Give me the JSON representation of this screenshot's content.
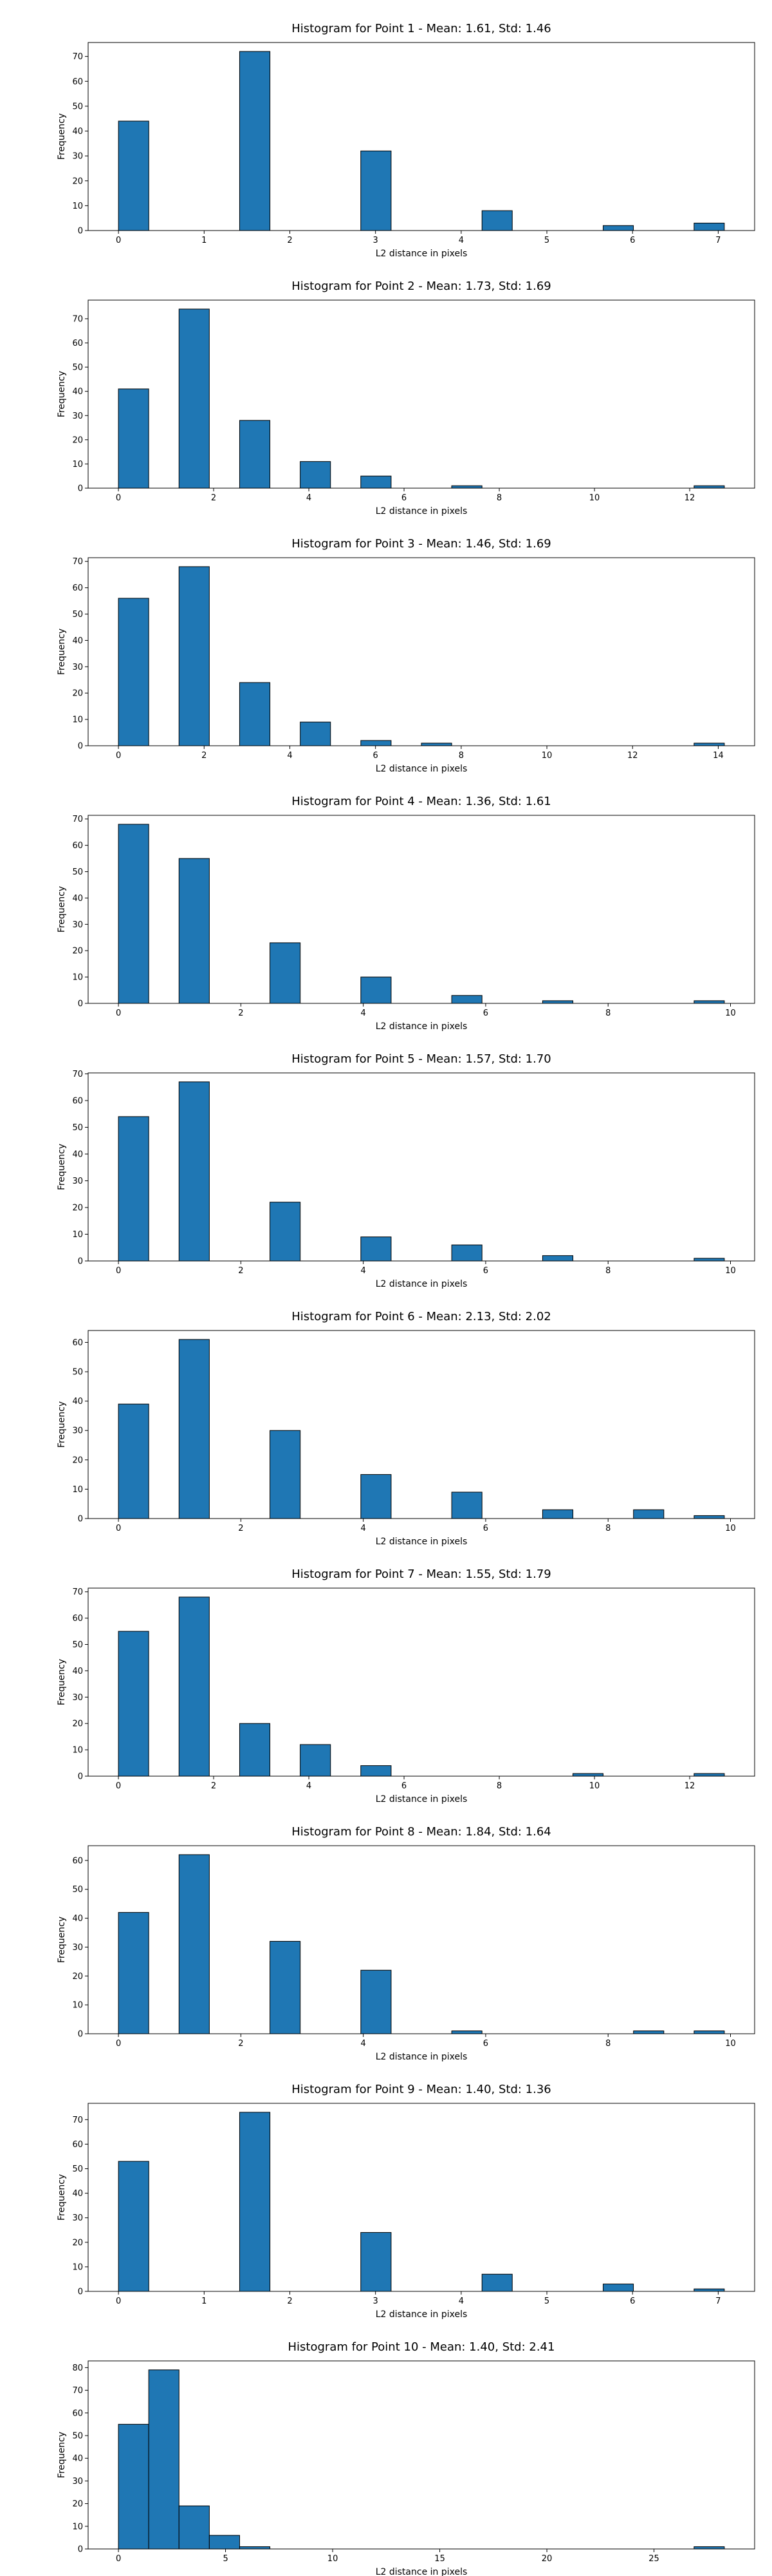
{
  "chart_data": [
    {
      "type": "histogram",
      "title": "Histogram for Point 1 - Mean: 1.61, Std: 1.46",
      "x_label": "L2 distance in pixels",
      "y_label": "Frequency",
      "color": "#1f77b4",
      "bins": [
        0,
        0.354,
        0.707,
        1.061,
        1.414,
        1.768,
        2.121,
        2.475,
        2.828,
        3.182,
        3.536,
        3.889,
        4.243,
        4.596,
        4.95,
        5.303,
        5.657,
        6.01,
        6.364,
        6.718,
        7.071
      ],
      "values": [
        44,
        0,
        0,
        0,
        72,
        0,
        0,
        0,
        32,
        0,
        0,
        0,
        8,
        0,
        0,
        0,
        2,
        0,
        0,
        3
      ],
      "xlim": [
        -0.354,
        7.425
      ],
      "ylim": [
        0,
        75.6
      ],
      "xticks": [
        0,
        1,
        2,
        3,
        4,
        5,
        6,
        7
      ],
      "yticks": [
        0,
        10,
        20,
        30,
        40,
        50,
        60,
        70
      ]
    },
    {
      "type": "histogram",
      "title": "Histogram for Point 2 - Mean: 1.73, Std: 1.69",
      "x_label": "L2 distance in pixels",
      "y_label": "Frequency",
      "color": "#1f77b4",
      "bins": [
        0,
        0.636,
        1.273,
        1.909,
        2.546,
        3.182,
        3.818,
        4.455,
        5.091,
        5.728,
        6.364,
        7.0,
        7.637,
        8.273,
        8.91,
        9.546,
        10.182,
        10.819,
        11.455,
        12.092,
        12.728
      ],
      "values": [
        41,
        0,
        74,
        0,
        28,
        0,
        11,
        0,
        5,
        0,
        0,
        1,
        0,
        0,
        0,
        0,
        0,
        0,
        0,
        1
      ],
      "xlim": [
        -0.636,
        13.364
      ],
      "ylim": [
        0,
        77.7
      ],
      "xticks": [
        0,
        2,
        4,
        6,
        8,
        10,
        12
      ],
      "yticks": [
        0,
        10,
        20,
        30,
        40,
        50,
        60,
        70
      ]
    },
    {
      "type": "histogram",
      "title": "Histogram for Point 3 - Mean: 1.46, Std: 1.69",
      "x_label": "L2 distance in pixels",
      "y_label": "Frequency",
      "color": "#1f77b4",
      "bins": [
        0,
        0.707,
        1.414,
        2.121,
        2.828,
        3.536,
        4.243,
        4.95,
        5.657,
        6.364,
        7.071,
        7.778,
        8.485,
        9.192,
        9.899,
        10.607,
        11.314,
        12.021,
        12.728,
        13.435,
        14.142
      ],
      "values": [
        56,
        0,
        68,
        0,
        24,
        0,
        9,
        0,
        2,
        0,
        1,
        0,
        0,
        0,
        0,
        0,
        0,
        0,
        0,
        1
      ],
      "xlim": [
        -0.707,
        14.849
      ],
      "ylim": [
        0,
        71.4
      ],
      "xticks": [
        0,
        2,
        4,
        6,
        8,
        10,
        12,
        14
      ],
      "yticks": [
        0,
        10,
        20,
        30,
        40,
        50,
        60,
        70
      ]
    },
    {
      "type": "histogram",
      "title": "Histogram for Point 4 - Mean: 1.36, Std: 1.61",
      "x_label": "L2 distance in pixels",
      "y_label": "Frequency",
      "color": "#1f77b4",
      "bins": [
        0,
        0.495,
        0.99,
        1.485,
        1.98,
        2.475,
        2.97,
        3.465,
        3.96,
        4.455,
        4.95,
        5.445,
        5.94,
        6.435,
        6.93,
        7.425,
        7.92,
        8.415,
        8.91,
        9.405,
        9.899
      ],
      "values": [
        68,
        0,
        55,
        0,
        0,
        23,
        0,
        0,
        10,
        0,
        0,
        3,
        0,
        0,
        1,
        0,
        0,
        0,
        0,
        1
      ],
      "xlim": [
        -0.495,
        10.394
      ],
      "ylim": [
        0,
        71.4
      ],
      "xticks": [
        0,
        2,
        4,
        6,
        8,
        10
      ],
      "yticks": [
        0,
        10,
        20,
        30,
        40,
        50,
        60,
        70
      ]
    },
    {
      "type": "histogram",
      "title": "Histogram for Point 5 - Mean: 1.57, Std: 1.70",
      "x_label": "L2 distance in pixels",
      "y_label": "Frequency",
      "color": "#1f77b4",
      "bins": [
        0,
        0.495,
        0.99,
        1.485,
        1.98,
        2.475,
        2.97,
        3.465,
        3.96,
        4.455,
        4.95,
        5.445,
        5.94,
        6.435,
        6.93,
        7.425,
        7.92,
        8.415,
        8.91,
        9.405,
        9.899
      ],
      "values": [
        54,
        0,
        67,
        0,
        0,
        22,
        0,
        0,
        9,
        0,
        0,
        6,
        0,
        0,
        2,
        0,
        0,
        0,
        0,
        1
      ],
      "xlim": [
        -0.495,
        10.394
      ],
      "ylim": [
        0,
        70.35
      ],
      "xticks": [
        0,
        2,
        4,
        6,
        8,
        10
      ],
      "yticks": [
        0,
        10,
        20,
        30,
        40,
        50,
        60,
        70
      ]
    },
    {
      "type": "histogram",
      "title": "Histogram for Point 6 - Mean: 2.13, Std: 2.02",
      "x_label": "L2 distance in pixels",
      "y_label": "Frequency",
      "color": "#1f77b4",
      "bins": [
        0,
        0.495,
        0.99,
        1.485,
        1.98,
        2.475,
        2.97,
        3.465,
        3.96,
        4.455,
        4.95,
        5.445,
        5.94,
        6.435,
        6.93,
        7.425,
        7.92,
        8.415,
        8.91,
        9.405,
        9.899
      ],
      "values": [
        39,
        0,
        61,
        0,
        0,
        30,
        0,
        0,
        15,
        0,
        0,
        9,
        0,
        0,
        3,
        0,
        0,
        3,
        0,
        1
      ],
      "xlim": [
        -0.495,
        10.394
      ],
      "ylim": [
        0,
        64.05
      ],
      "xticks": [
        0,
        2,
        4,
        6,
        8,
        10
      ],
      "yticks": [
        0,
        10,
        20,
        30,
        40,
        50,
        60
      ]
    },
    {
      "type": "histogram",
      "title": "Histogram for Point 7 - Mean: 1.55, Std: 1.79",
      "x_label": "L2 distance in pixels",
      "y_label": "Frequency",
      "color": "#1f77b4",
      "bins": [
        0,
        0.636,
        1.273,
        1.909,
        2.546,
        3.182,
        3.818,
        4.455,
        5.091,
        5.728,
        6.364,
        7.0,
        7.637,
        8.273,
        8.91,
        9.546,
        10.182,
        10.819,
        11.455,
        12.092,
        12.728
      ],
      "values": [
        55,
        0,
        68,
        0,
        20,
        0,
        12,
        0,
        4,
        0,
        0,
        0,
        0,
        0,
        0,
        1,
        0,
        0,
        0,
        1
      ],
      "xlim": [
        -0.636,
        13.364
      ],
      "ylim": [
        0,
        71.4
      ],
      "xticks": [
        0,
        2,
        4,
        6,
        8,
        10,
        12
      ],
      "yticks": [
        0,
        10,
        20,
        30,
        40,
        50,
        60,
        70
      ]
    },
    {
      "type": "histogram",
      "title": "Histogram for Point 8 - Mean: 1.84, Std: 1.64",
      "x_label": "L2 distance in pixels",
      "y_label": "Frequency",
      "color": "#1f77b4",
      "bins": [
        0,
        0.495,
        0.99,
        1.485,
        1.98,
        2.475,
        2.97,
        3.465,
        3.96,
        4.455,
        4.95,
        5.445,
        5.94,
        6.435,
        6.93,
        7.425,
        7.92,
        8.415,
        8.91,
        9.405,
        9.899
      ],
      "values": [
        42,
        0,
        62,
        0,
        0,
        32,
        0,
        0,
        22,
        0,
        0,
        1,
        0,
        0,
        0,
        0,
        0,
        1,
        0,
        1
      ],
      "xlim": [
        -0.495,
        10.394
      ],
      "ylim": [
        0,
        65.1
      ],
      "xticks": [
        0,
        2,
        4,
        6,
        8,
        10
      ],
      "yticks": [
        0,
        10,
        20,
        30,
        40,
        50,
        60
      ]
    },
    {
      "type": "histogram",
      "title": "Histogram for Point 9 - Mean: 1.40, Std: 1.36",
      "x_label": "L2 distance in pixels",
      "y_label": "Frequency",
      "color": "#1f77b4",
      "bins": [
        0,
        0.354,
        0.707,
        1.061,
        1.414,
        1.768,
        2.121,
        2.475,
        2.828,
        3.182,
        3.536,
        3.889,
        4.243,
        4.596,
        4.95,
        5.303,
        5.657,
        6.01,
        6.364,
        6.718,
        7.071
      ],
      "values": [
        53,
        0,
        0,
        0,
        73,
        0,
        0,
        0,
        24,
        0,
        0,
        0,
        7,
        0,
        0,
        0,
        3,
        0,
        0,
        1
      ],
      "xlim": [
        -0.354,
        7.425
      ],
      "ylim": [
        0,
        76.65
      ],
      "xticks": [
        0,
        1,
        2,
        3,
        4,
        5,
        6,
        7
      ],
      "yticks": [
        0,
        10,
        20,
        30,
        40,
        50,
        60,
        70
      ]
    },
    {
      "type": "histogram",
      "title": "Histogram for Point 10 - Mean: 1.40, Std: 2.41",
      "x_label": "L2 distance in pixels",
      "y_label": "Frequency",
      "color": "#1f77b4",
      "bins": [
        0,
        1.414,
        2.828,
        4.243,
        5.657,
        7.071,
        8.485,
        9.899,
        11.314,
        12.728,
        14.142,
        15.556,
        16.971,
        18.385,
        19.799,
        21.213,
        22.627,
        24.042,
        25.456,
        26.87,
        28.284
      ],
      "values": [
        55,
        79,
        19,
        6,
        1,
        0,
        0,
        0,
        0,
        0,
        0,
        0,
        0,
        0,
        0,
        0,
        0,
        0,
        0,
        1
      ],
      "xlim": [
        -1.414,
        29.698
      ],
      "ylim": [
        0,
        82.95
      ],
      "xticks": [
        0,
        5,
        10,
        15,
        20,
        25
      ],
      "yticks": [
        0,
        10,
        20,
        30,
        40,
        50,
        60,
        70,
        80
      ]
    }
  ]
}
